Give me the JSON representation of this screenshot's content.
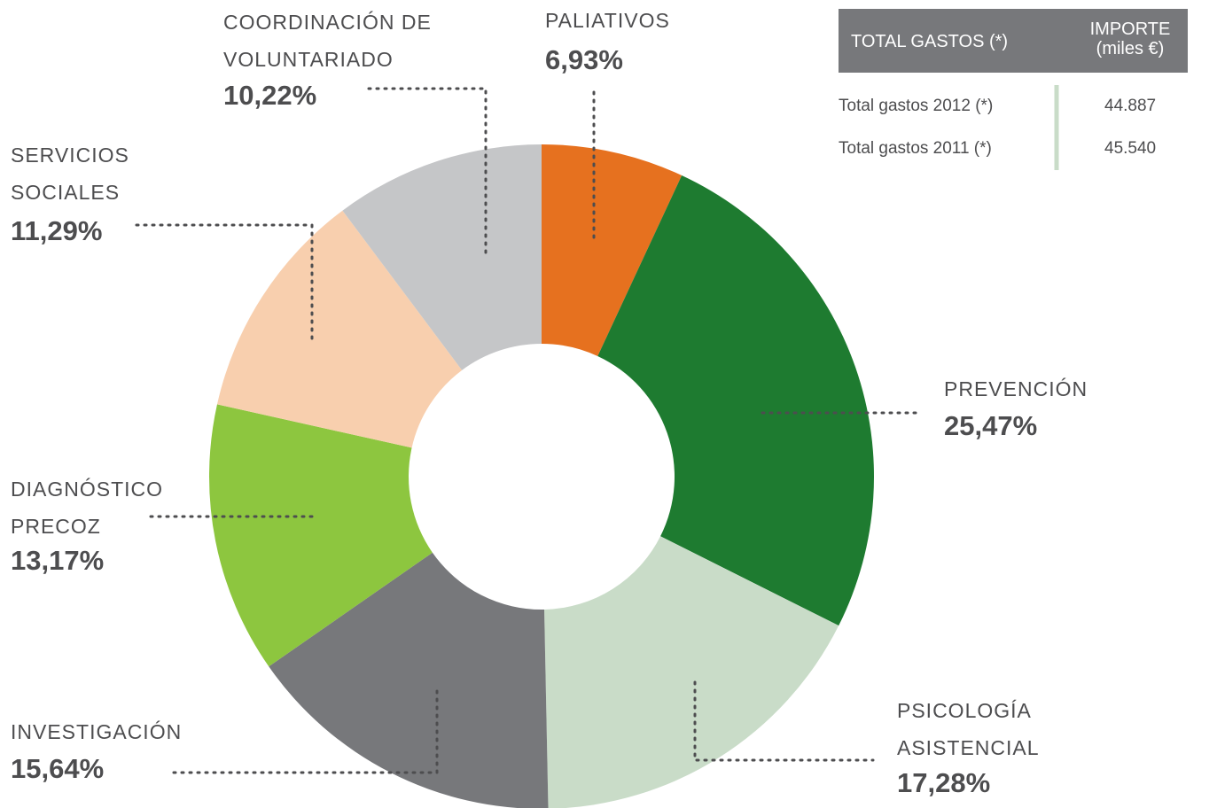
{
  "chart_data": {
    "type": "donut",
    "categories": [
      "PALIATIVOS",
      "PREVENCIÓN",
      "PSICOLOGÍA\nASISTENCIAL",
      "INVESTIGACIÓN",
      "DIAGNÓSTICO\nPRECOZ",
      "SERVICIOS\nSOCIALES",
      "COORDINACIÓN DE\nVOLUNTARIADO"
    ],
    "values": [
      6.93,
      25.47,
      17.28,
      15.64,
      13.17,
      11.29,
      10.22
    ],
    "value_labels": [
      "6,93%",
      "25,47%",
      "17,28%",
      "15,64%",
      "13,17%",
      "11,29%",
      "10,22%"
    ],
    "colors": [
      "#e6711f",
      "#1e7b30",
      "#c9dcc8",
      "#77787b",
      "#8dc63f",
      "#f8cfae",
      "#c5c6c8"
    ]
  },
  "table": {
    "header": [
      "TOTAL GASTOS (*)",
      "IMPORTE\n(miles €)"
    ],
    "rows": [
      [
        "Total gastos 2012 (*)",
        "44.887"
      ],
      [
        "Total gastos 2011 (*)",
        "45.540"
      ]
    ]
  }
}
